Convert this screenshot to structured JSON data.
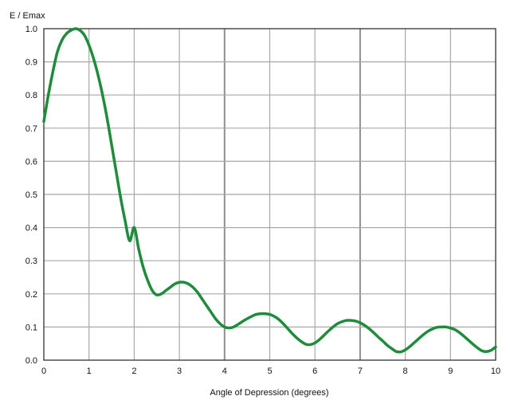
{
  "chart_data": {
    "type": "line",
    "title": "",
    "xlabel": "Angle of Depression (degrees)",
    "ylabel": "E / Emax",
    "xlim": [
      0,
      10
    ],
    "ylim": [
      0,
      1.0
    ],
    "x_ticks": [
      "0",
      "1",
      "2",
      "3",
      "4",
      "5",
      "6",
      "7",
      "8",
      "9",
      "10"
    ],
    "y_ticks": [
      "0.0",
      "0.1",
      "0.2",
      "0.3",
      "0.4",
      "0.5",
      "0.6",
      "0.7",
      "0.8",
      "0.9",
      "1.0"
    ],
    "grid": true,
    "line_color": "#1e8c3a",
    "series": [
      {
        "x": [
          0,
          0.1,
          0.2,
          0.3,
          0.4,
          0.5,
          0.6,
          0.7,
          0.8,
          0.9,
          1.0,
          1.1,
          1.2,
          1.3,
          1.4,
          1.5,
          1.6,
          1.7,
          1.8,
          1.9,
          2.0,
          2.1,
          2.2,
          2.3,
          2.4,
          2.5,
          2.6,
          2.7,
          2.8,
          2.9,
          3.0,
          3.1,
          3.2,
          3.3,
          3.4,
          3.5,
          3.6,
          3.7,
          3.8,
          3.9,
          4.0,
          4.1,
          4.2,
          4.3,
          4.4,
          4.5,
          4.6,
          4.7,
          4.8,
          4.9,
          5.0,
          5.1,
          5.2,
          5.3,
          5.4,
          5.5,
          5.6,
          5.7,
          5.8,
          5.9,
          6.0,
          6.1,
          6.2,
          6.3,
          6.4,
          6.5,
          6.6,
          6.7,
          6.8,
          6.9,
          7.0,
          7.1,
          7.2,
          7.3,
          7.4,
          7.5,
          7.6,
          7.7,
          7.8,
          7.9,
          8.0,
          8.1,
          8.2,
          8.3,
          8.4,
          8.5,
          8.6,
          8.7,
          8.8,
          8.9,
          9.0,
          9.1,
          9.2,
          9.3,
          9.4,
          9.5,
          9.6,
          9.7,
          9.8,
          9.9,
          10.0
        ],
        "values": [
          0.72,
          0.8,
          0.87,
          0.93,
          0.965,
          0.985,
          0.995,
          1.0,
          0.995,
          0.98,
          0.95,
          0.91,
          0.86,
          0.8,
          0.73,
          0.65,
          0.57,
          0.49,
          0.42,
          0.36,
          0.4,
          0.335,
          0.28,
          0.24,
          0.21,
          0.197,
          0.2,
          0.21,
          0.22,
          0.23,
          0.235,
          0.235,
          0.23,
          0.22,
          0.205,
          0.185,
          0.165,
          0.145,
          0.125,
          0.11,
          0.1,
          0.097,
          0.1,
          0.108,
          0.117,
          0.125,
          0.132,
          0.138,
          0.14,
          0.14,
          0.138,
          0.132,
          0.123,
          0.11,
          0.095,
          0.08,
          0.067,
          0.056,
          0.048,
          0.047,
          0.052,
          0.062,
          0.075,
          0.088,
          0.1,
          0.11,
          0.116,
          0.12,
          0.12,
          0.118,
          0.113,
          0.105,
          0.095,
          0.083,
          0.07,
          0.058,
          0.045,
          0.035,
          0.026,
          0.025,
          0.031,
          0.041,
          0.053,
          0.065,
          0.077,
          0.087,
          0.094,
          0.099,
          0.1,
          0.1,
          0.097,
          0.092,
          0.083,
          0.072,
          0.06,
          0.048,
          0.037,
          0.028,
          0.026,
          0.03,
          0.04
        ]
      }
    ]
  }
}
